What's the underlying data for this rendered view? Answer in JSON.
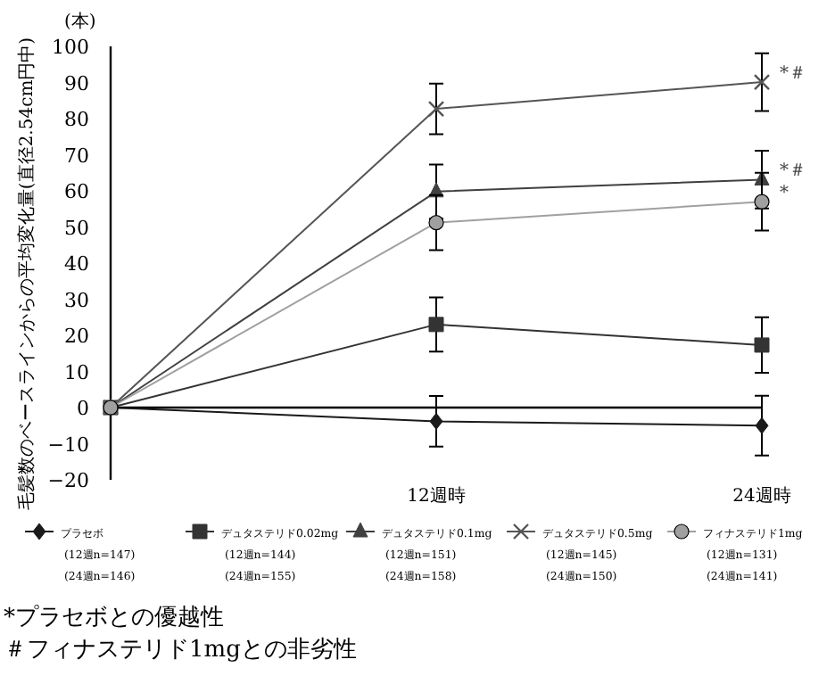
{
  "chart_data": {
    "type": "line",
    "ylabel": "毛髪数のベースラインからの平均変化量(直径2.54cm円中)",
    "categories": [
      null,
      "12週時",
      "24週時"
    ],
    "ylim": [
      -20,
      100
    ],
    "yticks": [
      -20,
      -10,
      0,
      10,
      20,
      30,
      40,
      50,
      60,
      70,
      80,
      90,
      100
    ],
    "legend": "bottom",
    "grid": false,
    "ref_lines": [
      {
        "axis": "y",
        "value": 0,
        "color": "#000000"
      }
    ],
    "series": [
      {
        "name": "プラセボ\n(12週n=147)\n(24週n=146)",
        "color": "#1a1a1a",
        "marker": "diamond",
        "values": [
          0,
          -3.8,
          -5
        ],
        "errors": [
          null,
          7,
          8.3
        ]
      },
      {
        "name": "デュタステリド0.02mg\n(12週n=144)\n(24週n=155)",
        "color": "#333333",
        "marker": "square",
        "values": [
          0,
          23,
          17.3
        ],
        "errors": [
          null,
          7.5,
          7.7
        ]
      },
      {
        "name": "デュタステリド0.1mg\n(12週n=151)\n(24週n=158)",
        "color": "#404040",
        "marker": "triangle",
        "values": [
          0,
          59.8,
          63.1
        ],
        "errors": [
          null,
          7.5,
          8
        ]
      },
      {
        "name": "デュタステリド0.5mg\n(12週n=145)\n(24週n=150)",
        "color": "#555555",
        "marker": "cross",
        "values": [
          0,
          82.7,
          90.1
        ],
        "errors": [
          null,
          7,
          8
        ]
      },
      {
        "name": "フィナステリド1mg\n(12週n=131)\n(24週n=141)",
        "color": "#a0a0a0",
        "marker": "circle",
        "values": [
          0,
          51.2,
          57
        ],
        "errors": [
          null,
          7.6,
          8
        ]
      }
    ],
    "annotations": [
      "(本)",
      {
        "text": "*＃",
        "x": "24週時",
        "y": 90.1
      },
      {
        "text": "*＃",
        "x": "24週時",
        "y": 63.1
      },
      {
        "text": "*",
        "x": "24週時",
        "y": 57
      },
      "*プラセボとの優越性",
      "＃フィナステリド1mgとの非劣性"
    ]
  }
}
